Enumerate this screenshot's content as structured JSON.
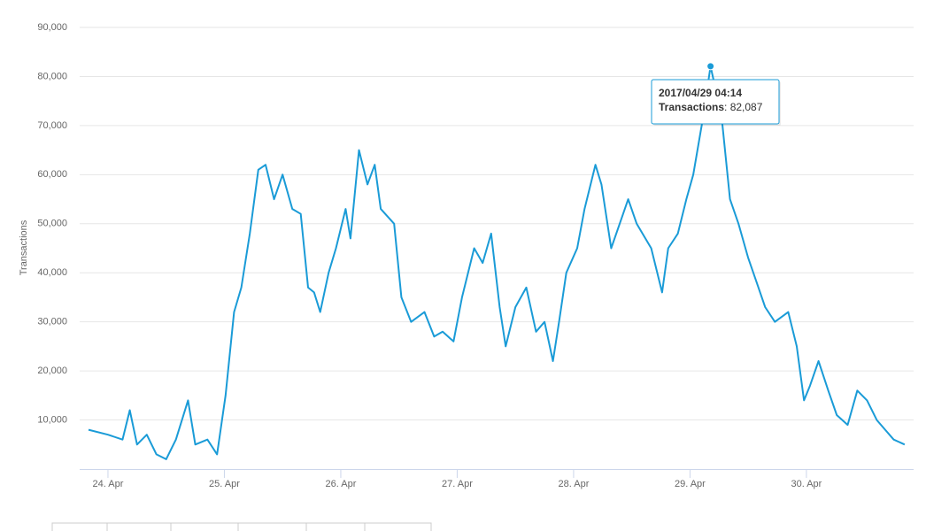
{
  "chart_data": {
    "type": "line",
    "y_label": "Transactions",
    "series": [
      {
        "name": "Transactions",
        "color": "#1a9bd7",
        "x": [
          "2017-04-23T20:00",
          "2017-04-24T00:00",
          "2017-04-24T03:00",
          "2017-04-24T04:30",
          "2017-04-24T06:00",
          "2017-04-24T08:00",
          "2017-04-24T10:00",
          "2017-04-24T12:00",
          "2017-04-24T14:00",
          "2017-04-24T16:30",
          "2017-04-24T18:00",
          "2017-04-24T20:30",
          "2017-04-24T22:30",
          "2017-04-25T00:15",
          "2017-04-25T02:00",
          "2017-04-25T03:30",
          "2017-04-25T05:15",
          "2017-04-25T07:00",
          "2017-04-25T08:30",
          "2017-04-25T10:15",
          "2017-04-25T12:00",
          "2017-04-25T14:00",
          "2017-04-25T15:45",
          "2017-04-25T17:15",
          "2017-04-25T18:30",
          "2017-04-25T19:45",
          "2017-04-25T21:30",
          "2017-04-25T23:00",
          "2017-04-26T01:00",
          "2017-04-26T02:00",
          "2017-04-26T03:45",
          "2017-04-26T05:30",
          "2017-04-26T07:00",
          "2017-04-26T08:15",
          "2017-04-26T11:00",
          "2017-04-26T12:30",
          "2017-04-26T14:30",
          "2017-04-26T17:15",
          "2017-04-26T19:15",
          "2017-04-26T21:00",
          "2017-04-26T23:15",
          "2017-04-27T01:00",
          "2017-04-27T03:30",
          "2017-04-27T05:15",
          "2017-04-27T07:00",
          "2017-04-27T08:45",
          "2017-04-27T10:00",
          "2017-04-27T12:00",
          "2017-04-27T14:15",
          "2017-04-27T16:15",
          "2017-04-27T18:00",
          "2017-04-27T19:45",
          "2017-04-27T21:00",
          "2017-04-27T22:30",
          "2017-04-28T00:45",
          "2017-04-28T02:15",
          "2017-04-28T04:30",
          "2017-04-28T05:45",
          "2017-04-28T07:45",
          "2017-04-28T09:30",
          "2017-04-28T11:15",
          "2017-04-28T13:00",
          "2017-04-28T16:00",
          "2017-04-28T18:15",
          "2017-04-28T19:30",
          "2017-04-28T21:30",
          "2017-04-28T23:15",
          "2017-04-29T00:40",
          "2017-04-29T02:45",
          "2017-04-29T04:14",
          "2017-04-29T06:30",
          "2017-04-29T08:15",
          "2017-04-29T10:00",
          "2017-04-29T12:00",
          "2017-04-29T13:45",
          "2017-04-29T15:30",
          "2017-04-29T17:30",
          "2017-04-29T20:15",
          "2017-04-29T22:00",
          "2017-04-29T23:30",
          "2017-04-30T00:45",
          "2017-04-30T02:30",
          "2017-04-30T04:30",
          "2017-04-30T06:15",
          "2017-04-30T08:30",
          "2017-04-30T10:30",
          "2017-04-30T12:30",
          "2017-04-30T14:30",
          "2017-04-30T16:15",
          "2017-04-30T18:00",
          "2017-04-30T20:15"
        ],
        "values": [
          8000,
          7000,
          6000,
          12000,
          5000,
          7000,
          3000,
          2000,
          6000,
          14000,
          5000,
          6000,
          3000,
          15000,
          32000,
          37000,
          48000,
          61000,
          62000,
          55000,
          60000,
          53000,
          52000,
          37000,
          36000,
          32000,
          40000,
          45000,
          53000,
          47000,
          65000,
          58000,
          62000,
          53000,
          50000,
          35000,
          30000,
          32000,
          27000,
          28000,
          26000,
          35000,
          45000,
          42000,
          48000,
          33000,
          25000,
          33000,
          37000,
          28000,
          30000,
          22000,
          30000,
          40000,
          45000,
          53000,
          62000,
          58000,
          45000,
          50000,
          55000,
          50000,
          45000,
          36000,
          45000,
          48000,
          55000,
          60000,
          72000,
          82087,
          72000,
          55000,
          50000,
          43000,
          38000,
          33000,
          30000,
          32000,
          25000,
          14000,
          17000,
          22000,
          16000,
          11000,
          9000,
          16000,
          14000,
          10000,
          8000,
          6000,
          5000
        ]
      }
    ],
    "xlim": [
      "2017-04-23T18:10",
      "2017-04-30T22:06"
    ],
    "xticks": [
      {
        "value": "2017-04-24",
        "label": "24. Apr"
      },
      {
        "value": "2017-04-25",
        "label": "25. Apr"
      },
      {
        "value": "2017-04-26",
        "label": "26. Apr"
      },
      {
        "value": "2017-04-27",
        "label": "27. Apr"
      },
      {
        "value": "2017-04-28",
        "label": "28. Apr"
      },
      {
        "value": "2017-04-29",
        "label": "29. Apr"
      },
      {
        "value": "2017-04-30",
        "label": "30. Apr"
      }
    ],
    "ylim": [
      0,
      90000
    ],
    "yticks": [
      {
        "value": 10000,
        "label": "10,000"
      },
      {
        "value": 20000,
        "label": "20,000"
      },
      {
        "value": 30000,
        "label": "30,000"
      },
      {
        "value": 40000,
        "label": "40,000"
      },
      {
        "value": 50000,
        "label": "50,000"
      },
      {
        "value": 60000,
        "label": "60,000"
      },
      {
        "value": 70000,
        "label": "70,000"
      },
      {
        "value": 80000,
        "label": "80,000"
      },
      {
        "value": 90000,
        "label": "90,000"
      }
    ],
    "grid": true,
    "tooltip": {
      "x": "2017-04-29T04:14",
      "title": "2017/04/29 04:14",
      "value": 82087,
      "label": "82,087"
    }
  }
}
